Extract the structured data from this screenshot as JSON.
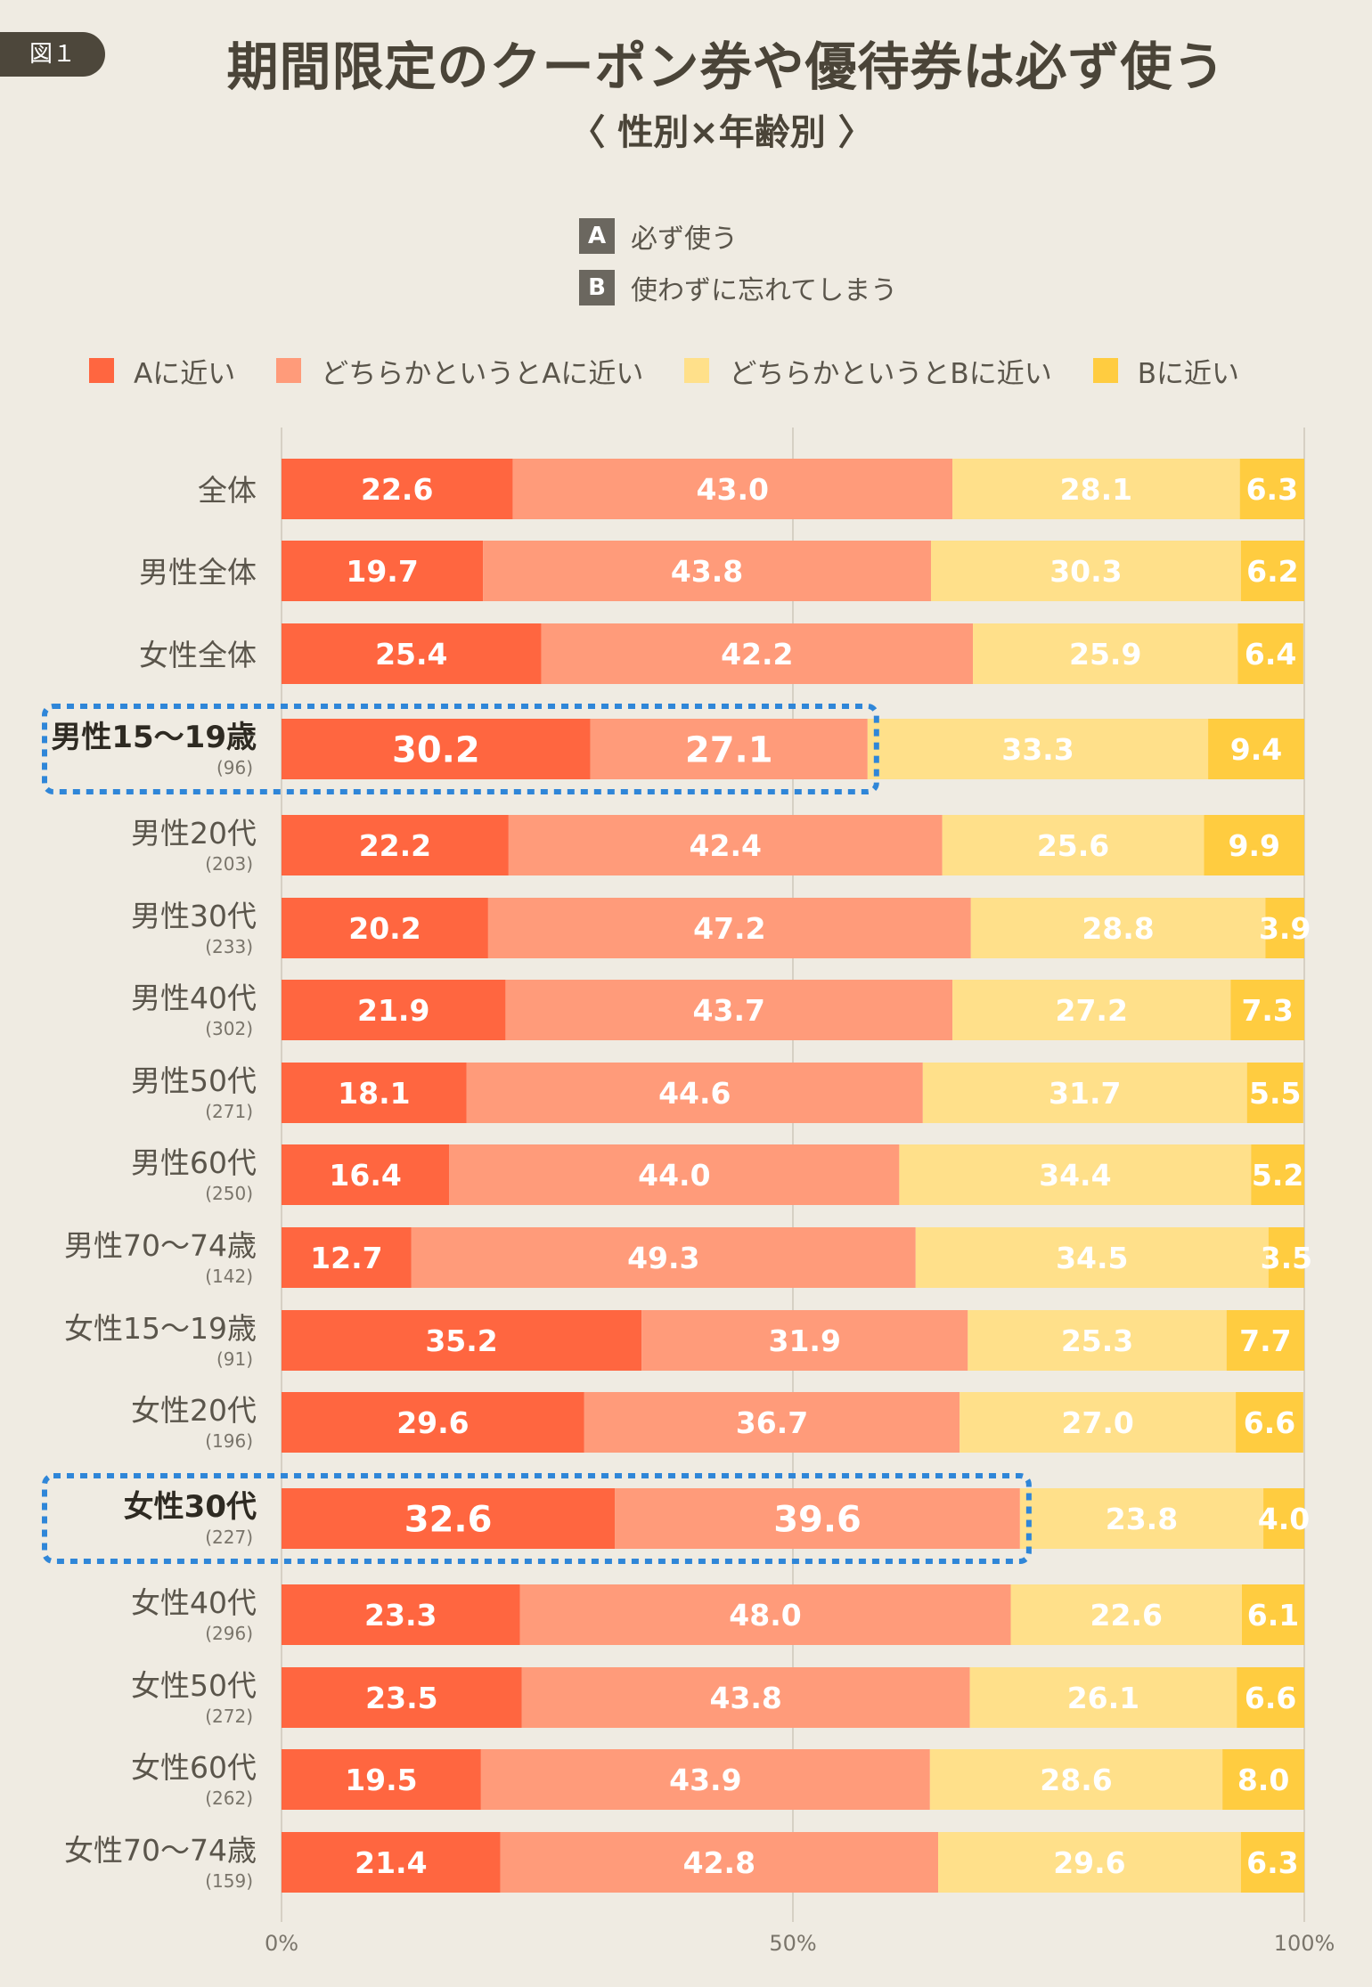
{
  "figure_label": "図１",
  "title": "期間限定のクーポン券や優待券は必ず使う",
  "subtitle": "〈 性別×年齢別 〉",
  "ab_legend": [
    {
      "key": "A",
      "text": "必ず使う"
    },
    {
      "key": "B",
      "text": "使わずに忘れてしまう"
    }
  ],
  "chart_data": {
    "type": "bar",
    "orientation": "horizontal",
    "stacked": true,
    "categories": [
      "全体",
      "男性全体",
      "女性全体",
      "男性15〜19歳",
      "男性20代",
      "男性30代",
      "男性40代",
      "男性50代",
      "男性60代",
      "男性70〜74歳",
      "女性15〜19歳",
      "女性20代",
      "女性30代",
      "女性40代",
      "女性50代",
      "女性60代",
      "女性70〜74歳"
    ],
    "sample_sizes": [
      "",
      "",
      "",
      "(96)",
      "(203)",
      "(233)",
      "(302)",
      "(271)",
      "(250)",
      "(142)",
      "(91)",
      "(196)",
      "(227)",
      "(296)",
      "(272)",
      "(262)",
      "(159)"
    ],
    "highlighted": [
      "男性15〜19歳",
      "女性30代"
    ],
    "series": [
      {
        "name": "Aに近い",
        "color": "#ff6640",
        "label_color": "#ffffff",
        "values": [
          22.6,
          19.7,
          25.4,
          30.2,
          22.2,
          20.2,
          21.9,
          18.1,
          16.4,
          12.7,
          35.2,
          29.6,
          32.6,
          23.3,
          23.5,
          19.5,
          21.4
        ]
      },
      {
        "name": "どちらかというとAに近い",
        "color": "#ff9b7a",
        "label_color": "#ffffff",
        "values": [
          43.0,
          43.8,
          42.2,
          27.1,
          42.4,
          47.2,
          43.7,
          44.6,
          44.0,
          49.3,
          31.9,
          36.7,
          39.6,
          48.0,
          43.8,
          43.9,
          42.8
        ]
      },
      {
        "name": "どちらかというとBに近い",
        "color": "#ffe08a",
        "label_color": "#ffffff",
        "values": [
          28.1,
          30.3,
          25.9,
          33.3,
          25.6,
          28.8,
          27.2,
          31.7,
          34.4,
          34.5,
          25.3,
          27.0,
          23.8,
          22.6,
          26.1,
          28.6,
          29.6
        ]
      },
      {
        "name": "Bに近い",
        "color": "#ffcc40",
        "label_color": "#ffffff",
        "values": [
          6.3,
          6.2,
          6.4,
          9.4,
          9.9,
          3.9,
          7.3,
          5.5,
          5.2,
          3.5,
          7.7,
          6.6,
          4.0,
          6.1,
          6.6,
          8.0,
          6.3
        ]
      }
    ],
    "xlim": [
      0,
      100
    ],
    "x_ticks": [
      "0%",
      "50%",
      "100%"
    ],
    "grid": true,
    "legend_position": "top"
  }
}
